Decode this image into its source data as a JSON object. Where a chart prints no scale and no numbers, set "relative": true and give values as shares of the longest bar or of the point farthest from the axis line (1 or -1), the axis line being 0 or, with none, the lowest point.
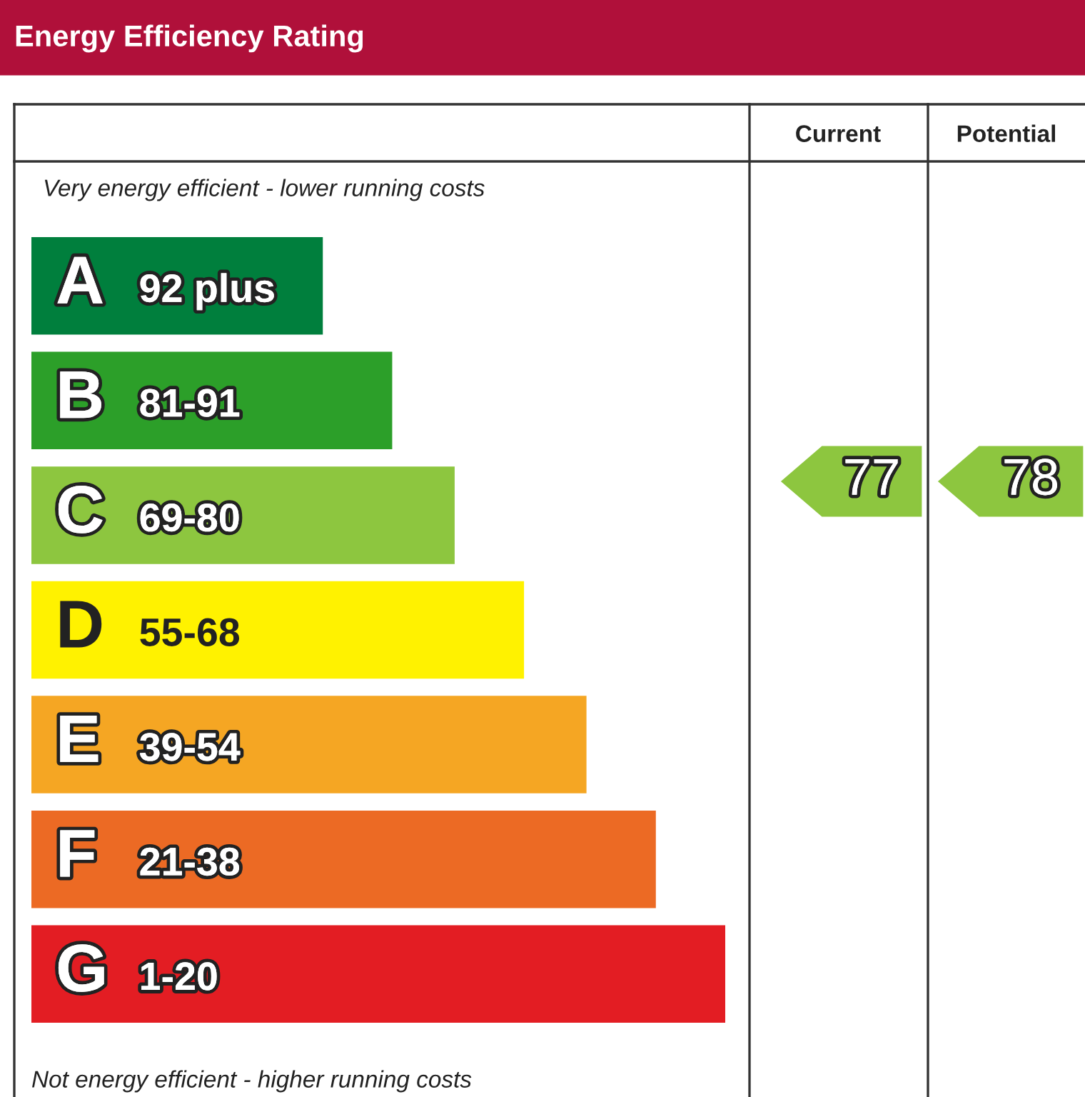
{
  "chart_data": {
    "type": "bar",
    "orientation": "horizontal",
    "relative": true,
    "title": "Energy Efficiency Rating",
    "categories": [
      "A 92 plus",
      "B 81-91",
      "C 69-80",
      "D 55-68",
      "E 39-54",
      "F 21-38",
      "G 1-20"
    ],
    "values": [
      0.42,
      0.52,
      0.61,
      0.71,
      0.8,
      0.9,
      1.0
    ],
    "colors": [
      "#007f3d",
      "#2c9f29",
      "#8dc63f",
      "#fff200",
      "#f5a623",
      "#ec6a24",
      "#e31d23"
    ],
    "annotations": [
      "Very energy efficient - lower running costs",
      "Not energy efficient - higher running costs",
      "Current",
      "Potential",
      "77",
      "78"
    ],
    "legend": false
  }
}
